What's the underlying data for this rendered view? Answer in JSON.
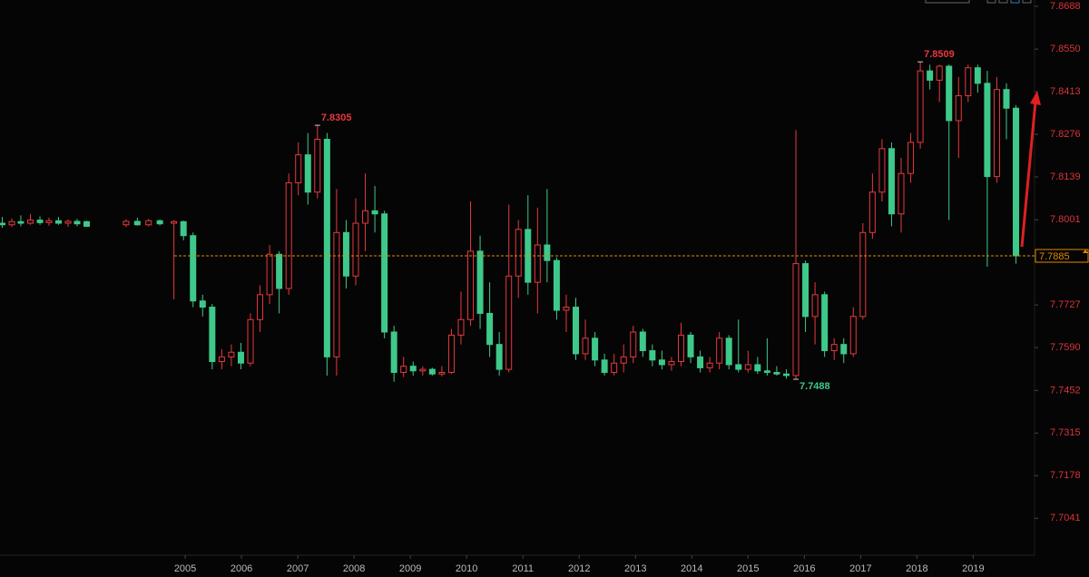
{
  "chart_data": {
    "type": "candlestick",
    "up_color": "#e8383d",
    "down_color": "#3ec98a",
    "xlim": [
      2001.71,
      2020.09
    ],
    "xticks": [
      2005,
      2006,
      2007,
      2008,
      2009,
      2010,
      2011,
      2012,
      2013,
      2014,
      2015,
      2016,
      2017,
      2018,
      2019
    ],
    "ylim": [
      7.6922,
      7.8708
    ],
    "yticks": [
      7.8688,
      {
        "value": 7.855,
        "label": "7.8550"
      },
      7.8413,
      7.8276,
      7.8139,
      7.8001,
      7.7727,
      {
        "value": 7.759,
        "label": "7.7590"
      },
      7.7452,
      7.7315,
      7.7178,
      7.7041
    ],
    "x": [
      2001.75,
      2001.92,
      2002.08,
      2002.25,
      2002.42,
      2002.58,
      2002.75,
      2002.92,
      2003.08,
      2003.25,
      2003.95,
      2004.15,
      2004.35,
      2004.55,
      2004.8,
      2004.97,
      2005.14,
      2005.31,
      2005.48,
      2005.65,
      2005.82,
      2005.99,
      2006.16,
      2006.33,
      2006.5,
      2006.67,
      2006.84,
      2007.01,
      2007.18,
      2007.35,
      2007.52,
      2007.69,
      2007.86,
      2008.03,
      2008.2,
      2008.37,
      2008.54,
      2008.71,
      2008.88,
      2009.05,
      2009.22,
      2009.39,
      2009.56,
      2009.73,
      2009.9,
      2010.07,
      2010.24,
      2010.41,
      2010.58,
      2010.75,
      2010.92,
      2011.09,
      2011.26,
      2011.43,
      2011.6,
      2011.77,
      2011.94,
      2012.11,
      2012.28,
      2012.45,
      2012.62,
      2012.79,
      2012.96,
      2013.13,
      2013.3,
      2013.47,
      2013.64,
      2013.81,
      2013.98,
      2014.15,
      2014.32,
      2014.49,
      2014.66,
      2014.83,
      2015.0,
      2015.17,
      2015.34,
      2015.51,
      2015.68,
      2015.85,
      2016.02,
      2016.19,
      2016.36,
      2016.53,
      2016.7,
      2016.87,
      2017.04,
      2017.21,
      2017.38,
      2017.55,
      2017.72,
      2017.89,
      2018.06,
      2018.23,
      2018.4,
      2018.57,
      2018.74,
      2018.91,
      2019.08,
      2019.25,
      2019.42,
      2019.59,
      2019.76
    ],
    "open": [
      7.799,
      7.7985,
      7.7995,
      7.799,
      7.8,
      7.7992,
      7.7998,
      7.799,
      7.7996,
      7.7995,
      7.7985,
      7.7996,
      7.7985,
      7.7998,
      7.799,
      7.7995,
      7.795,
      7.774,
      7.772,
      7.7545,
      7.756,
      7.7575,
      7.754,
      7.768,
      7.776,
      7.789,
      7.778,
      7.812,
      7.821,
      7.809,
      7.826,
      7.756,
      7.796,
      7.782,
      7.799,
      7.803,
      7.802,
      7.764,
      7.751,
      7.753,
      7.7515,
      7.752,
      7.7505,
      7.751,
      7.763,
      7.768,
      7.79,
      7.77,
      7.76,
      7.752,
      7.782,
      7.797,
      7.78,
      7.792,
      7.787,
      7.771,
      7.772,
      7.757,
      7.762,
      7.755,
      7.751,
      7.754,
      7.756,
      7.764,
      7.758,
      7.755,
      7.7535,
      7.7545,
      7.763,
      7.756,
      7.7525,
      7.754,
      7.762,
      7.7535,
      7.752,
      7.7535,
      7.7515,
      7.751,
      7.7505,
      7.75,
      7.786,
      7.769,
      7.776,
      7.758,
      7.76,
      7.757,
      7.769,
      7.796,
      7.809,
      7.823,
      7.802,
      7.815,
      7.825,
      7.848,
      7.845,
      7.8495,
      7.832,
      7.84,
      7.849,
      7.844,
      7.814,
      7.842,
      7.836
    ],
    "high": [
      7.801,
      7.8005,
      7.8015,
      7.802,
      7.8012,
      7.8008,
      7.801,
      7.8002,
      7.8004,
      7.7998,
      7.8003,
      7.8008,
      7.8004,
      7.8002,
      7.8,
      7.7998,
      7.796,
      7.776,
      7.773,
      7.7585,
      7.76,
      7.7605,
      7.77,
      7.779,
      7.792,
      7.79,
      7.815,
      7.825,
      7.828,
      7.8305,
      7.828,
      7.81,
      7.8,
      7.807,
      7.815,
      7.811,
      7.803,
      7.766,
      7.756,
      7.7545,
      7.753,
      7.7525,
      7.753,
      7.765,
      7.777,
      7.806,
      7.795,
      7.78,
      7.764,
      7.805,
      7.8,
      7.808,
      7.804,
      7.81,
      7.788,
      7.776,
      7.775,
      7.768,
      7.764,
      7.757,
      7.757,
      7.76,
      7.766,
      7.765,
      7.76,
      7.758,
      7.756,
      7.767,
      7.764,
      7.758,
      7.756,
      7.764,
      7.763,
      7.768,
      7.758,
      7.756,
      7.762,
      7.753,
      7.752,
      7.829,
      7.787,
      7.78,
      7.777,
      7.762,
      7.762,
      7.772,
      7.799,
      7.815,
      7.826,
      7.825,
      7.82,
      7.828,
      7.8509,
      7.85,
      7.85,
      7.85,
      7.846,
      7.85,
      7.85,
      7.848,
      7.846,
      7.844,
      7.837
    ],
    "low": [
      7.7975,
      7.7978,
      7.798,
      7.7985,
      7.7985,
      7.7982,
      7.7985,
      7.7978,
      7.798,
      7.7978,
      7.7978,
      7.7982,
      7.798,
      7.7983,
      7.7745,
      7.7935,
      7.772,
      7.769,
      7.752,
      7.752,
      7.753,
      7.752,
      7.753,
      7.764,
      7.773,
      7.77,
      7.776,
      7.808,
      7.805,
      7.807,
      7.75,
      7.75,
      7.778,
      7.779,
      7.79,
      7.796,
      7.762,
      7.748,
      7.7495,
      7.75,
      7.75,
      7.75,
      7.7497,
      7.7505,
      7.76,
      7.766,
      7.765,
      7.756,
      7.75,
      7.751,
      7.775,
      7.776,
      7.77,
      7.78,
      7.768,
      7.764,
      7.755,
      7.755,
      7.753,
      7.75,
      7.75,
      7.751,
      7.754,
      7.756,
      7.753,
      7.752,
      7.7515,
      7.753,
      7.754,
      7.751,
      7.751,
      7.752,
      7.752,
      7.751,
      7.751,
      7.7505,
      7.75,
      7.75,
      7.749,
      7.7488,
      7.764,
      7.76,
      7.756,
      7.755,
      7.754,
      7.756,
      7.768,
      7.794,
      7.806,
      7.798,
      7.796,
      7.812,
      7.823,
      7.842,
      7.838,
      7.8,
      7.82,
      7.838,
      7.841,
      7.785,
      7.812,
      7.826,
      7.786
    ],
    "close": [
      7.7985,
      7.7995,
      7.799,
      7.8,
      7.7992,
      7.7998,
      7.799,
      7.7996,
      7.7988,
      7.798,
      7.7996,
      7.7985,
      7.7998,
      7.7988,
      7.7995,
      7.795,
      7.774,
      7.772,
      7.7545,
      7.756,
      7.7575,
      7.754,
      7.768,
      7.776,
      7.789,
      7.778,
      7.812,
      7.821,
      7.809,
      7.826,
      7.756,
      7.796,
      7.782,
      7.799,
      7.803,
      7.802,
      7.764,
      7.751,
      7.753,
      7.7515,
      7.752,
      7.7505,
      7.751,
      7.763,
      7.768,
      7.79,
      7.77,
      7.76,
      7.752,
      7.782,
      7.797,
      7.78,
      7.792,
      7.787,
      7.771,
      7.772,
      7.757,
      7.762,
      7.755,
      7.751,
      7.754,
      7.756,
      7.764,
      7.758,
      7.755,
      7.7535,
      7.7545,
      7.763,
      7.756,
      7.7525,
      7.754,
      7.762,
      7.7535,
      7.752,
      7.7535,
      7.7515,
      7.751,
      7.7505,
      7.75,
      7.786,
      7.769,
      7.776,
      7.758,
      7.76,
      7.757,
      7.769,
      7.796,
      7.809,
      7.823,
      7.802,
      7.815,
      7.825,
      7.848,
      7.845,
      7.8495,
      7.832,
      7.84,
      7.849,
      7.844,
      7.814,
      7.842,
      7.836,
      7.7885
    ],
    "annotations": [
      {
        "text": "7.8305",
        "x": 2007.35,
        "y": 7.8305
      },
      {
        "text": "7.8509",
        "x": 2018.06,
        "y": 7.8509
      },
      {
        "text": "7.7488",
        "x": 2015.85,
        "y": 7.7488
      }
    ],
    "last_price": {
      "value": 7.7885,
      "label": "7.7885"
    }
  }
}
